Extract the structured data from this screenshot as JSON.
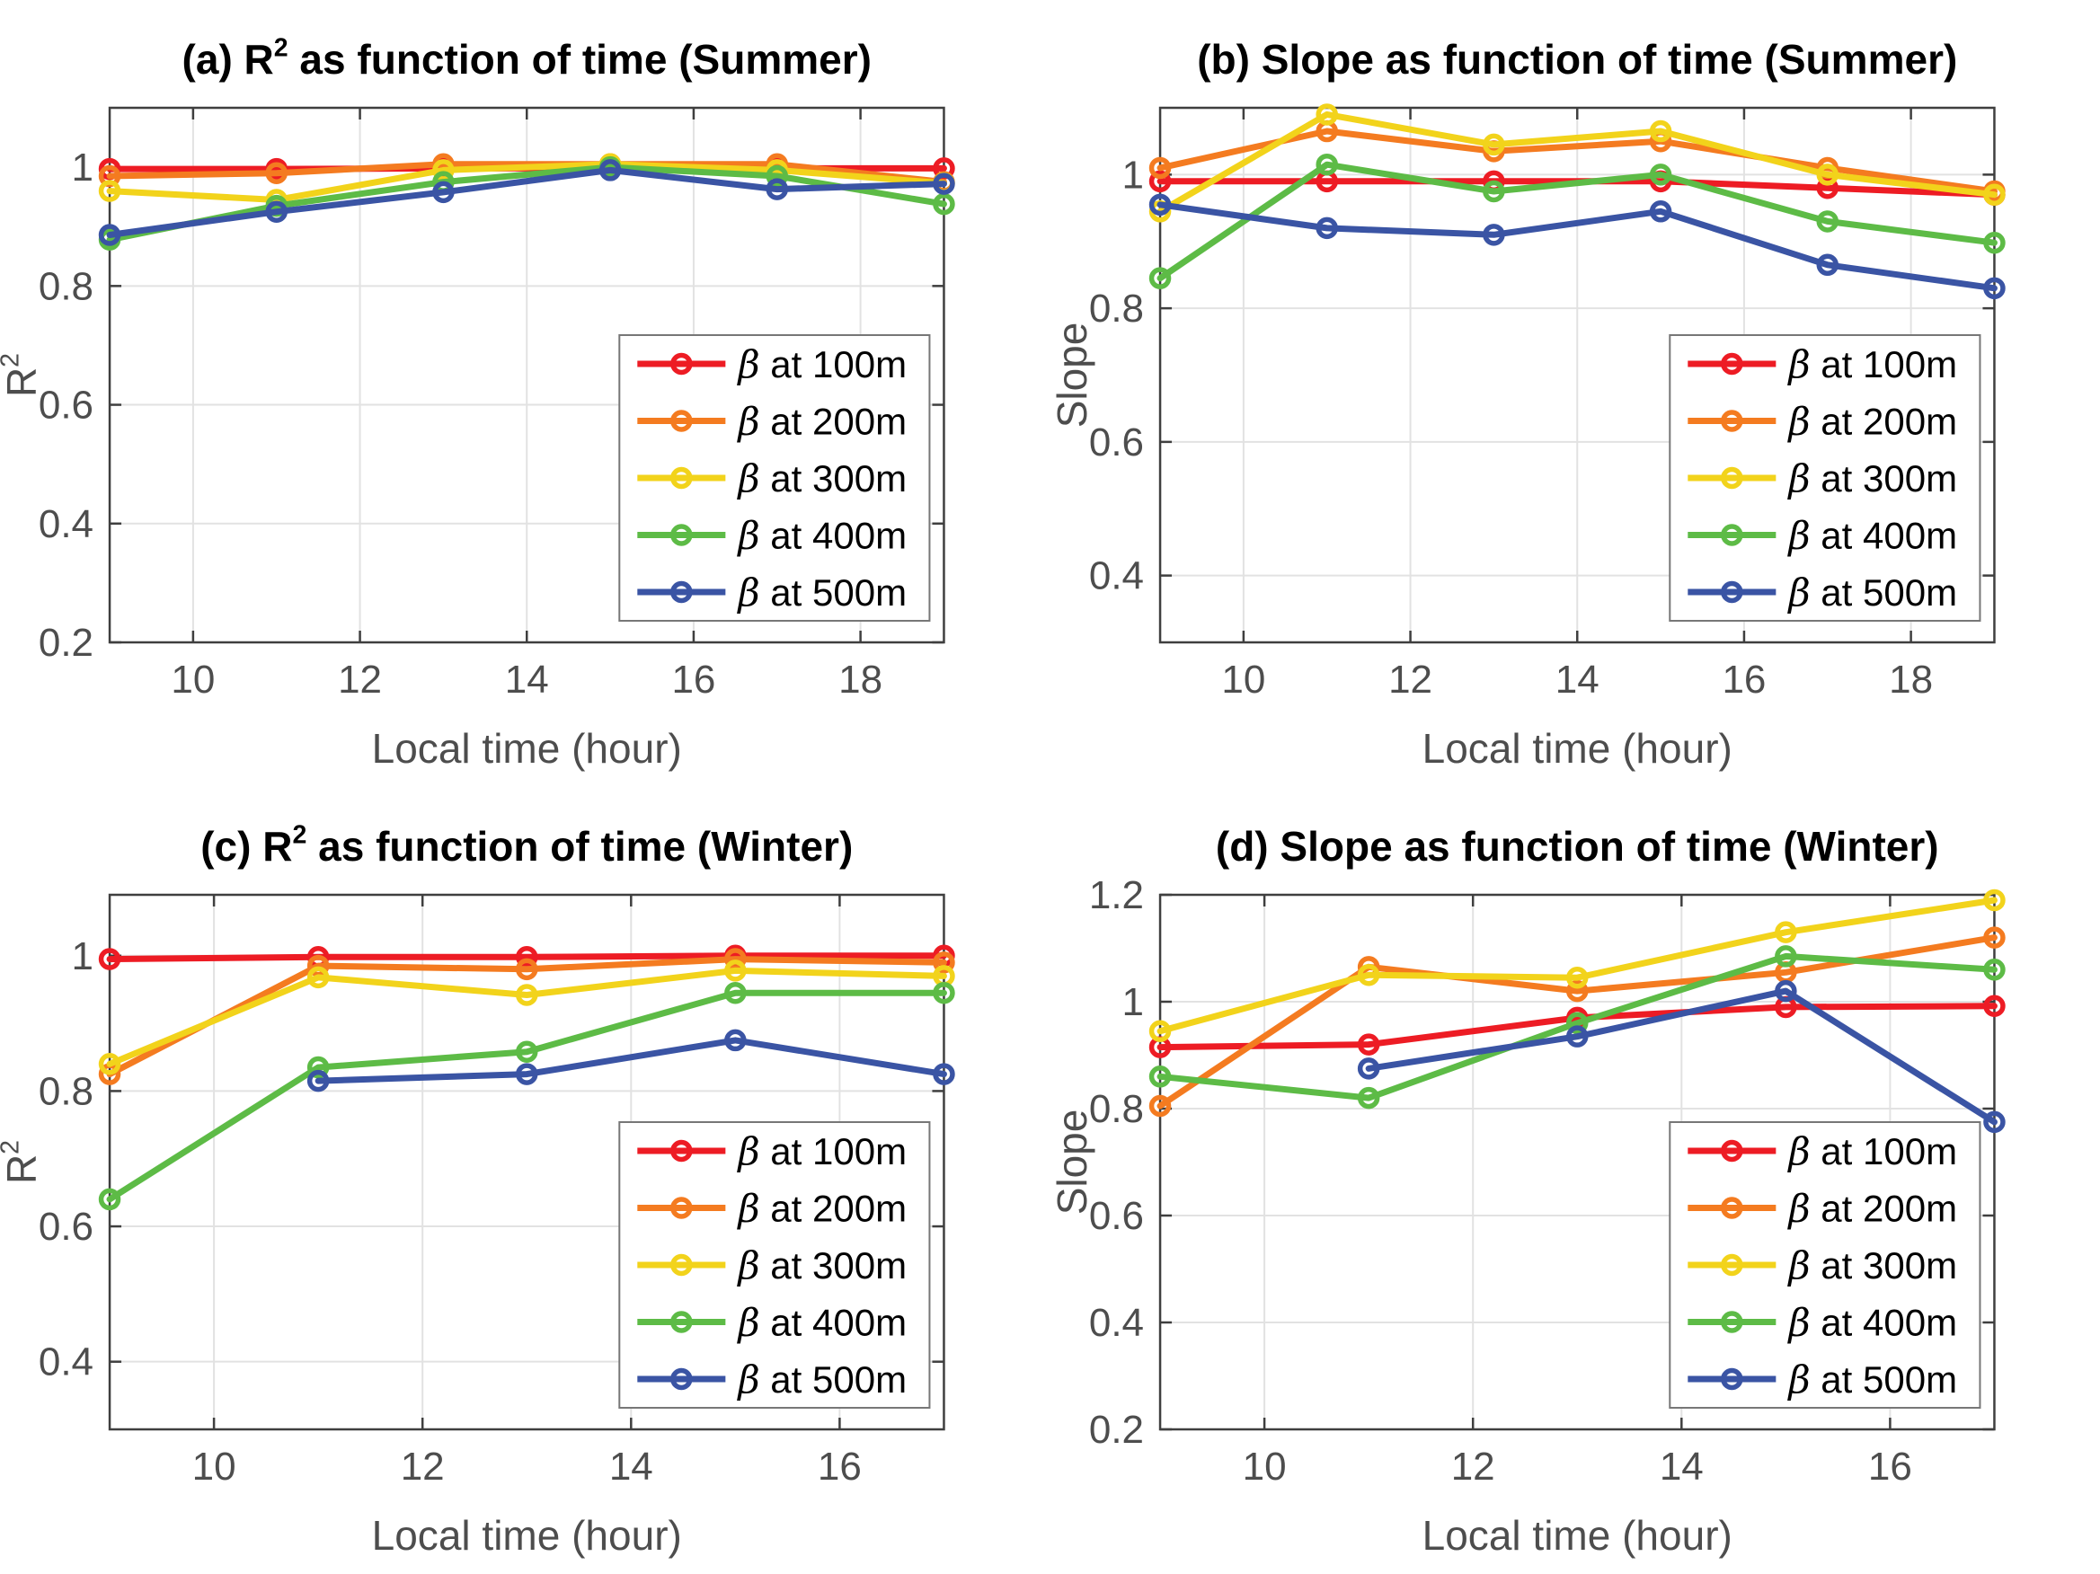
{
  "figure": {
    "background": "#ffffff",
    "axis_color": "#3f3f3f",
    "grid_color": "#e2e2e2",
    "tick_label_color": "#4d4d4d",
    "legend_border_color": "#777777",
    "palette": {
      "beta_100m": "#ed1c24",
      "beta_200m": "#f47b20",
      "beta_300m": "#f2d31b",
      "beta_400m": "#5dbb46",
      "beta_500m": "#3a54a4"
    }
  },
  "chart_data": [
    {
      "type": "line",
      "panel": "a",
      "title": "(a) R² as function of time (Summer)",
      "xlabel": "Local time (hour)",
      "ylabel": "R²",
      "x": [
        9,
        11,
        13,
        15,
        17,
        19
      ],
      "xlim": [
        9,
        19
      ],
      "ylim": [
        0.2,
        1.1
      ],
      "xticks": [
        10,
        12,
        14,
        16,
        18
      ],
      "yticks": [
        0.2,
        0.4,
        0.6,
        0.8,
        1
      ],
      "grid": true,
      "legend_position": "bottom-right",
      "series": [
        {
          "name": "β at 100m",
          "color": "#ed1c24",
          "values": [
            0.997,
            0.997,
            0.998,
            0.998,
            0.998,
            0.998
          ]
        },
        {
          "name": "β at 200m",
          "color": "#f47b20",
          "values": [
            0.985,
            0.99,
            1.005,
            1.005,
            1.005,
            0.975
          ]
        },
        {
          "name": "β at 300m",
          "color": "#f2d31b",
          "values": [
            0.96,
            0.945,
            0.995,
            1.005,
            0.995,
            0.973
          ]
        },
        {
          "name": "β at 400m",
          "color": "#5dbb46",
          "values": [
            0.878,
            0.935,
            0.975,
            1.0,
            0.985,
            0.938
          ]
        },
        {
          "name": "β at 500m",
          "color": "#3a54a4",
          "values": [
            0.886,
            0.925,
            0.958,
            0.995,
            0.963,
            0.972
          ]
        }
      ]
    },
    {
      "type": "line",
      "panel": "b",
      "title": "(b) Slope as function of time (Summer)",
      "xlabel": "Local time (hour)",
      "ylabel": "Slope",
      "x": [
        9,
        11,
        13,
        15,
        17,
        19
      ],
      "xlim": [
        9,
        19
      ],
      "ylim": [
        0.3,
        1.1
      ],
      "xticks": [
        10,
        12,
        14,
        16,
        18
      ],
      "yticks": [
        0.4,
        0.6,
        0.8,
        1
      ],
      "grid": true,
      "legend_position": "bottom-right",
      "series": [
        {
          "name": "β at 100m",
          "color": "#ed1c24",
          "values": [
            0.99,
            0.99,
            0.99,
            0.99,
            0.98,
            0.97
          ]
        },
        {
          "name": "β at 200m",
          "color": "#f47b20",
          "values": [
            1.01,
            1.065,
            1.035,
            1.05,
            1.01,
            0.975
          ]
        },
        {
          "name": "β at 300m",
          "color": "#f2d31b",
          "values": [
            0.945,
            1.09,
            1.045,
            1.065,
            1.0,
            0.97
          ]
        },
        {
          "name": "β at 400m",
          "color": "#5dbb46",
          "values": [
            0.845,
            1.015,
            0.975,
            1.0,
            0.93,
            0.898
          ]
        },
        {
          "name": "β at 500m",
          "color": "#3a54a4",
          "values": [
            0.955,
            0.92,
            0.91,
            0.945,
            0.865,
            0.83
          ]
        }
      ]
    },
    {
      "type": "line",
      "panel": "c",
      "title": "(c) R² as function of time (Winter)",
      "xlabel": "Local time (hour)",
      "ylabel": "R²",
      "x": [
        9,
        11,
        13,
        15,
        17
      ],
      "xlim": [
        9,
        17
      ],
      "ylim": [
        0.3,
        1.09
      ],
      "xticks": [
        10,
        12,
        14,
        16
      ],
      "yticks": [
        0.4,
        0.6,
        0.8,
        1
      ],
      "grid": true,
      "legend_position": "bottom-right",
      "series": [
        {
          "name": "β at 100m",
          "color": "#ed1c24",
          "values": [
            0.995,
            0.998,
            0.998,
            1.0,
            1.0
          ]
        },
        {
          "name": "β at 200m",
          "color": "#f47b20",
          "values": [
            0.825,
            0.985,
            0.98,
            0.995,
            0.99
          ]
        },
        {
          "name": "β at 300m",
          "color": "#f2d31b",
          "values": [
            0.84,
            0.968,
            0.942,
            0.978,
            0.97
          ]
        },
        {
          "name": "β at 400m",
          "color": "#5dbb46",
          "values": [
            0.64,
            0.835,
            0.858,
            0.945,
            0.945
          ]
        },
        {
          "name": "β at 500m",
          "color": "#3a54a4",
          "values": [
            null,
            0.815,
            0.825,
            0.875,
            0.825
          ]
        }
      ]
    },
    {
      "type": "line",
      "panel": "d",
      "title": "(d) Slope as function of time (Winter)",
      "xlabel": "Local time (hour)",
      "ylabel": "Slope",
      "x": [
        9,
        11,
        13,
        15,
        17
      ],
      "xlim": [
        9,
        17
      ],
      "ylim": [
        0.2,
        1.2
      ],
      "xticks": [
        10,
        12,
        14,
        16
      ],
      "yticks": [
        0.2,
        0.4,
        0.6,
        0.8,
        1,
        1.2
      ],
      "grid": true,
      "legend_position": "bottom-right",
      "series": [
        {
          "name": "β at 100m",
          "color": "#ed1c24",
          "values": [
            0.915,
            0.92,
            0.97,
            0.99,
            0.992
          ]
        },
        {
          "name": "β at 200m",
          "color": "#f47b20",
          "values": [
            0.805,
            1.065,
            1.02,
            1.055,
            1.12
          ]
        },
        {
          "name": "β at 300m",
          "color": "#f2d31b",
          "values": [
            0.945,
            1.05,
            1.045,
            1.13,
            1.19
          ]
        },
        {
          "name": "β at 400m",
          "color": "#5dbb46",
          "values": [
            0.86,
            0.82,
            0.96,
            1.085,
            1.06
          ]
        },
        {
          "name": "β at 500m",
          "color": "#3a54a4",
          "values": [
            null,
            0.875,
            0.935,
            1.02,
            0.775
          ]
        }
      ]
    }
  ]
}
